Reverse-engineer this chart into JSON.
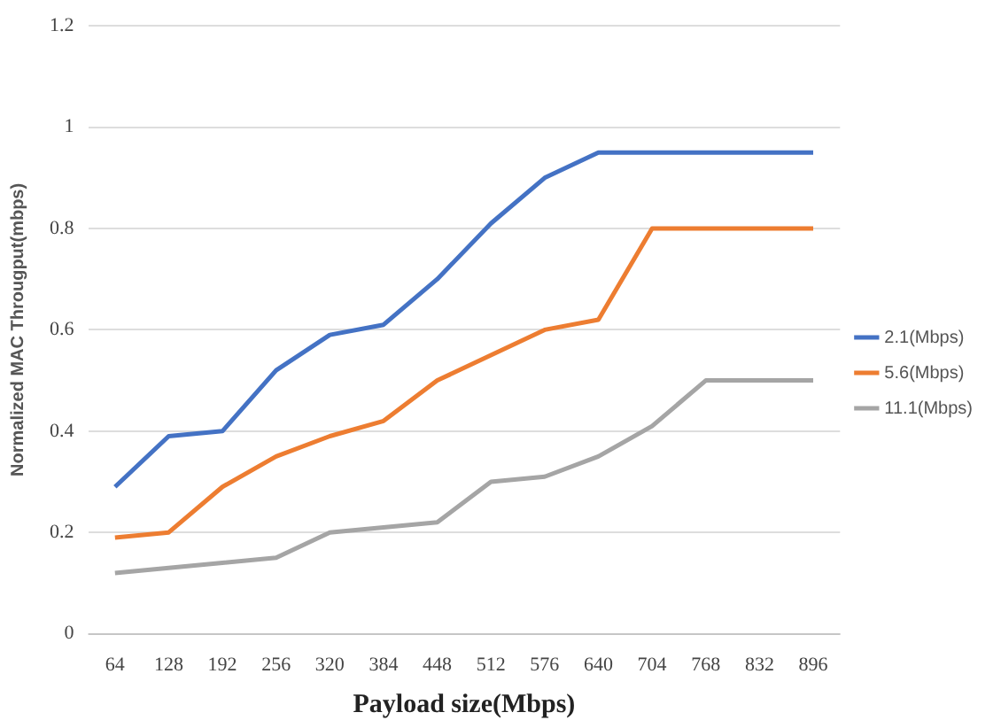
{
  "chart_data": {
    "type": "line",
    "xlabel": "Payload size(Mbps)",
    "ylabel": "Normalized MAC Througput(mbps)",
    "categories": [
      "64",
      "128",
      "192",
      "256",
      "320",
      "384",
      "448",
      "512",
      "576",
      "640",
      "704",
      "768",
      "832",
      "896"
    ],
    "series": [
      {
        "name": "2.1(Mbps)",
        "color": "#4472c4",
        "values": [
          0.29,
          0.39,
          0.4,
          0.52,
          0.59,
          0.61,
          0.7,
          0.81,
          0.9,
          0.95,
          0.95,
          0.95,
          0.95,
          0.95
        ]
      },
      {
        "name": "5.6(Mbps)",
        "color": "#ed7d31",
        "values": [
          0.19,
          0.2,
          0.29,
          0.35,
          0.39,
          0.42,
          0.5,
          0.55,
          0.6,
          0.62,
          0.8,
          0.8,
          0.8,
          0.8
        ]
      },
      {
        "name": "11.1(Mbps)",
        "color": "#a5a5a5",
        "values": [
          0.12,
          0.13,
          0.14,
          0.15,
          0.2,
          0.21,
          0.22,
          0.3,
          0.31,
          0.35,
          0.41,
          0.5,
          0.5,
          0.5
        ]
      }
    ],
    "ylim": [
      0,
      1.2
    ],
    "yticks": [
      0,
      0.2,
      0.4,
      0.6,
      0.8,
      1,
      1.2
    ],
    "grid": "y",
    "legend": "right",
    "marker": "none",
    "line_style": "solid"
  }
}
